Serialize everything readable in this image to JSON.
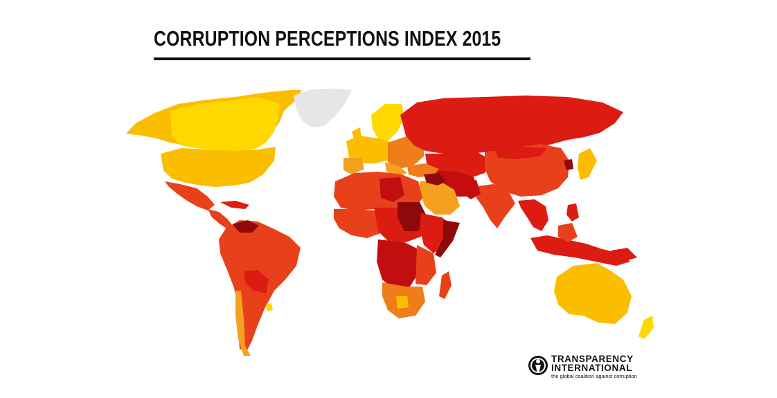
{
  "title": "CORRUPTION PERCEPTIONS INDEX 2015",
  "logo": {
    "line1": "TRANSPARENCY",
    "line2": "INTERNATIONAL",
    "tagline": "the global coalition against corruption",
    "icon": "transparency-international-logo-icon"
  },
  "palette": {
    "cleanest": "#ffd800",
    "clean": "#fbbd00",
    "moderate": "#f5a01e",
    "orange": "#ef7d1a",
    "red_orange": "#e8401a",
    "red": "#dc1c12",
    "dark_red": "#c20e0e",
    "deepest": "#8e0a0a",
    "no_data": "#e6e6e8"
  }
}
